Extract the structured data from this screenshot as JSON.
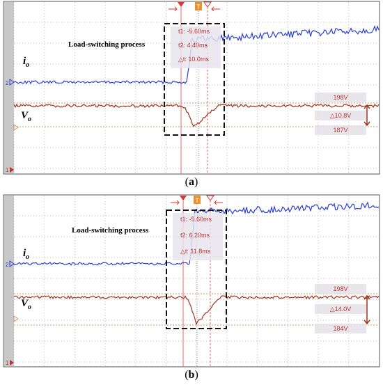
{
  "panels": [
    {
      "caption_open": "(",
      "caption_letter": "a",
      "caption_close": ")",
      "annotation": "Load-switching process",
      "current_symbol": "i",
      "current_subscript": "o",
      "voltage_symbol": "V",
      "voltage_subscript": "o",
      "readout": [
        "t1: -5.60ms",
        "t2: 4.40ms",
        "△t: 10.0ms"
      ],
      "upper_level": "198V",
      "delta": "△10.8V",
      "lower_level": "187V",
      "channel_current": "2",
      "channel_voltage": "1",
      "trigger": "T"
    },
    {
      "caption_open": "(",
      "caption_letter": "b",
      "caption_close": ")",
      "annotation": "Load-switching process",
      "current_symbol": "i",
      "current_subscript": "o",
      "voltage_symbol": "V",
      "voltage_subscript": "o",
      "readout": [
        "t1: -5.60ms",
        "t2: 6.20ms",
        "△t: 11.8ms"
      ],
      "upper_level": "198V",
      "delta": "△14.0V",
      "lower_level": "184V",
      "channel_current": "2",
      "channel_voltage": "1",
      "trigger": "T"
    }
  ]
}
